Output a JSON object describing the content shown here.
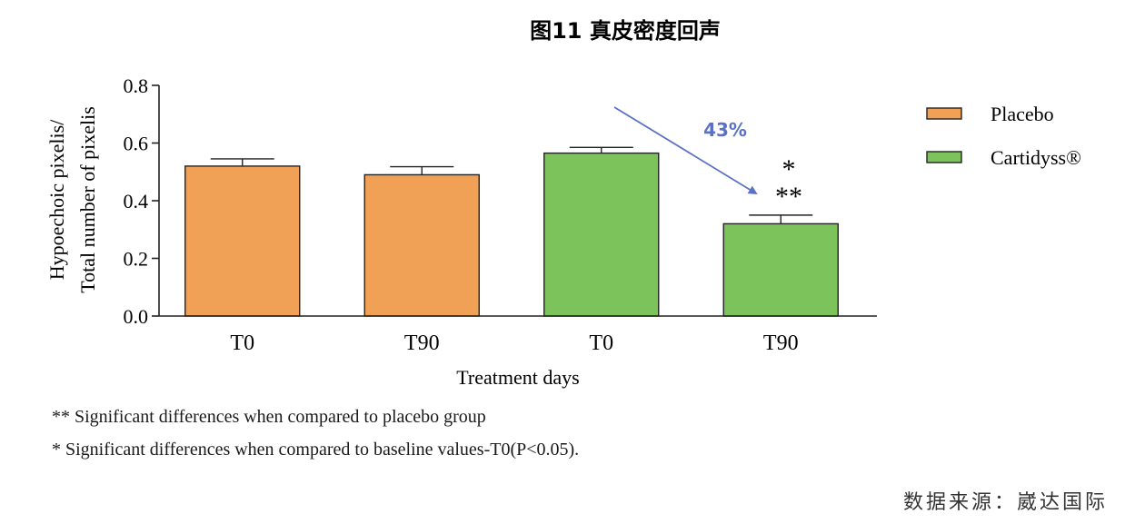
{
  "chart_data": {
    "type": "bar",
    "title": "图11  真皮密度回声",
    "ylabel_lines": [
      "Hypoechoic pixelis/",
      "Total number of pixelis"
    ],
    "xlabel": "Treatment days",
    "ylim": [
      0,
      0.8
    ],
    "yticks": [
      "0.0",
      "0.2",
      "0.4",
      "0.6",
      "0.8"
    ],
    "bars": [
      {
        "category": "T0",
        "group": "Placebo",
        "value": 0.52,
        "error": 0.025,
        "color": "#f0a155"
      },
      {
        "category": "T90",
        "group": "Placebo",
        "value": 0.49,
        "error": 0.028,
        "color": "#f0a155"
      },
      {
        "category": "T0",
        "group": "Cartidyss®",
        "value": 0.565,
        "error": 0.02,
        "color": "#7dc35b"
      },
      {
        "category": "T90",
        "group": "Cartidyss®",
        "value": 0.32,
        "error": 0.03,
        "color": "#7dc35b"
      }
    ],
    "legend": [
      {
        "label": "Placebo",
        "color": "#f0a155"
      },
      {
        "label": "Cartidyss®",
        "color": "#7dc35b"
      }
    ],
    "legend_position": "right",
    "annotation_percent": "43%",
    "annotation_star1": "*",
    "annotation_star2": "**",
    "annotation_color": "#5b72c4"
  },
  "footnotes": [
    "** Significant differences when compared to placebo group",
    "* Significant differences when compared to baseline values-T0(P<0.05)."
  ],
  "source": "数据来源：崴达国际"
}
